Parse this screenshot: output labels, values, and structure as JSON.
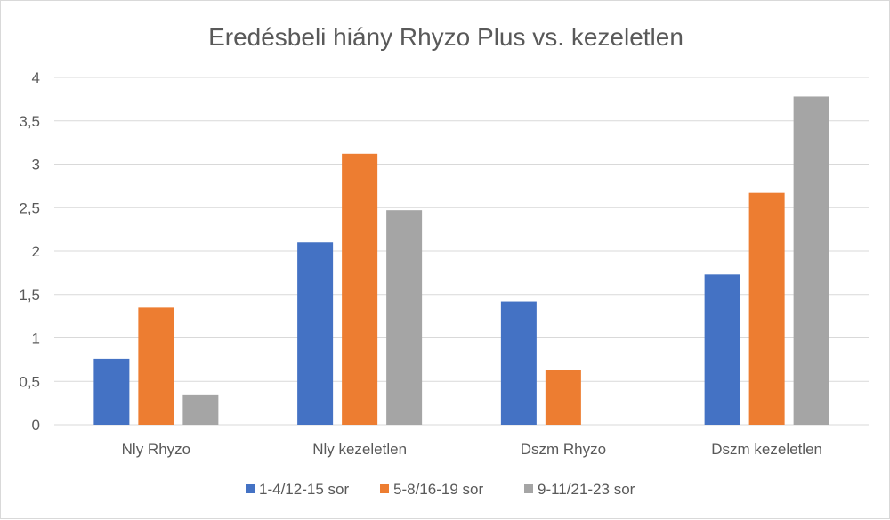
{
  "chart_data": {
    "type": "bar",
    "title": "Eredésbeli hiány Rhyzo Plus vs. kezeletlen",
    "categories": [
      "Nly Rhyzo",
      "Nly kezeletlen",
      "Dszm Rhyzo",
      "Dszm kezeletlen"
    ],
    "series": [
      {
        "name": "1-4/12-15 sor",
        "color": "#4472c4",
        "values": [
          0.76,
          2.1,
          1.42,
          1.73
        ]
      },
      {
        "name": "5-8/16-19 sor",
        "color": "#ed7d31",
        "values": [
          1.35,
          3.12,
          0.63,
          2.67
        ]
      },
      {
        "name": "9-11/21-23 sor",
        "color": "#a5a5a5",
        "values": [
          0.34,
          2.47,
          0,
          3.78
        ]
      }
    ],
    "ylim": [
      0,
      4
    ],
    "yticks": [
      0,
      0.5,
      1,
      1.5,
      2,
      2.5,
      3,
      3.5,
      4
    ],
    "ytick_labels": [
      "0",
      "0,5",
      "1",
      "1,5",
      "2",
      "2,5",
      "3",
      "3,5",
      "4"
    ],
    "grid": true,
    "legend_position": "bottom"
  }
}
